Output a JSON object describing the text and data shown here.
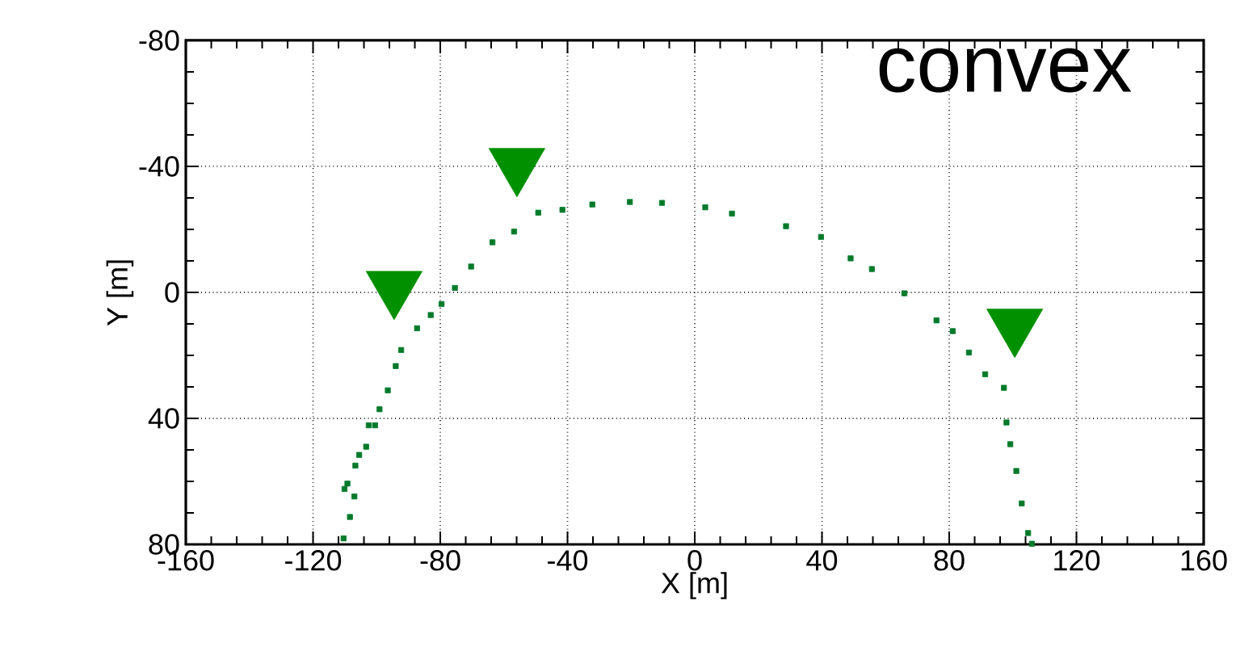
{
  "chart_data": {
    "type": "scatter",
    "xlabel": "X [m]",
    "ylabel": "Y [m]",
    "annotations": [
      "convex"
    ],
    "xlim": [
      -160,
      160
    ],
    "xticks": [
      -160,
      -120,
      -80,
      -40,
      0,
      40,
      80,
      120,
      160
    ],
    "ylim": [
      80,
      -80
    ],
    "yticks": [
      -80,
      -40,
      0,
      40,
      80
    ],
    "grid": true,
    "series": [
      {
        "color": "#007a2a",
        "marker": "square",
        "x": [
          -110.4,
          -110.1,
          -109.2,
          -108.4,
          -107.0,
          -106.7,
          -105.5,
          -103.3,
          -102.5,
          -100.5,
          -99.1,
          -96.5,
          -94.0,
          -92.3,
          -87.3,
          -83.0,
          -79.6,
          -75.4,
          -70.3,
          -63.6,
          -56.8,
          -49.2,
          -41.6,
          -32.2,
          -20.4,
          -10.3,
          3.3,
          11.7,
          28.7,
          39.7,
          49.0,
          55.7,
          65.9,
          76.0,
          81.1,
          86.2,
          91.3,
          97.2,
          98.0,
          99.2,
          101.1,
          102.8,
          104.8,
          106.0
        ],
        "values": [
          78.1,
          62.4,
          60.7,
          71.3,
          64.8,
          55.0,
          51.6,
          49.0,
          42.2,
          42.2,
          37.1,
          31.1,
          23.4,
          18.3,
          11.4,
          7.2,
          3.7,
          -1.4,
          -8.2,
          -15.9,
          -19.3,
          -25.3,
          -26.2,
          -27.9,
          -28.7,
          -28.4,
          -27.0,
          -25.0,
          -21.0,
          -17.6,
          -10.8,
          -7.4,
          0.3,
          8.9,
          12.3,
          19.1,
          26.0,
          30.3,
          41.3,
          48.2,
          56.7,
          67.0,
          76.4,
          79.8
        ]
      },
      {
        "color": "#009000",
        "marker": "triangle",
        "x": [
          -94.5,
          -55.9,
          100.6
        ],
        "values": [
          1,
          -38,
          13
        ]
      }
    ]
  }
}
